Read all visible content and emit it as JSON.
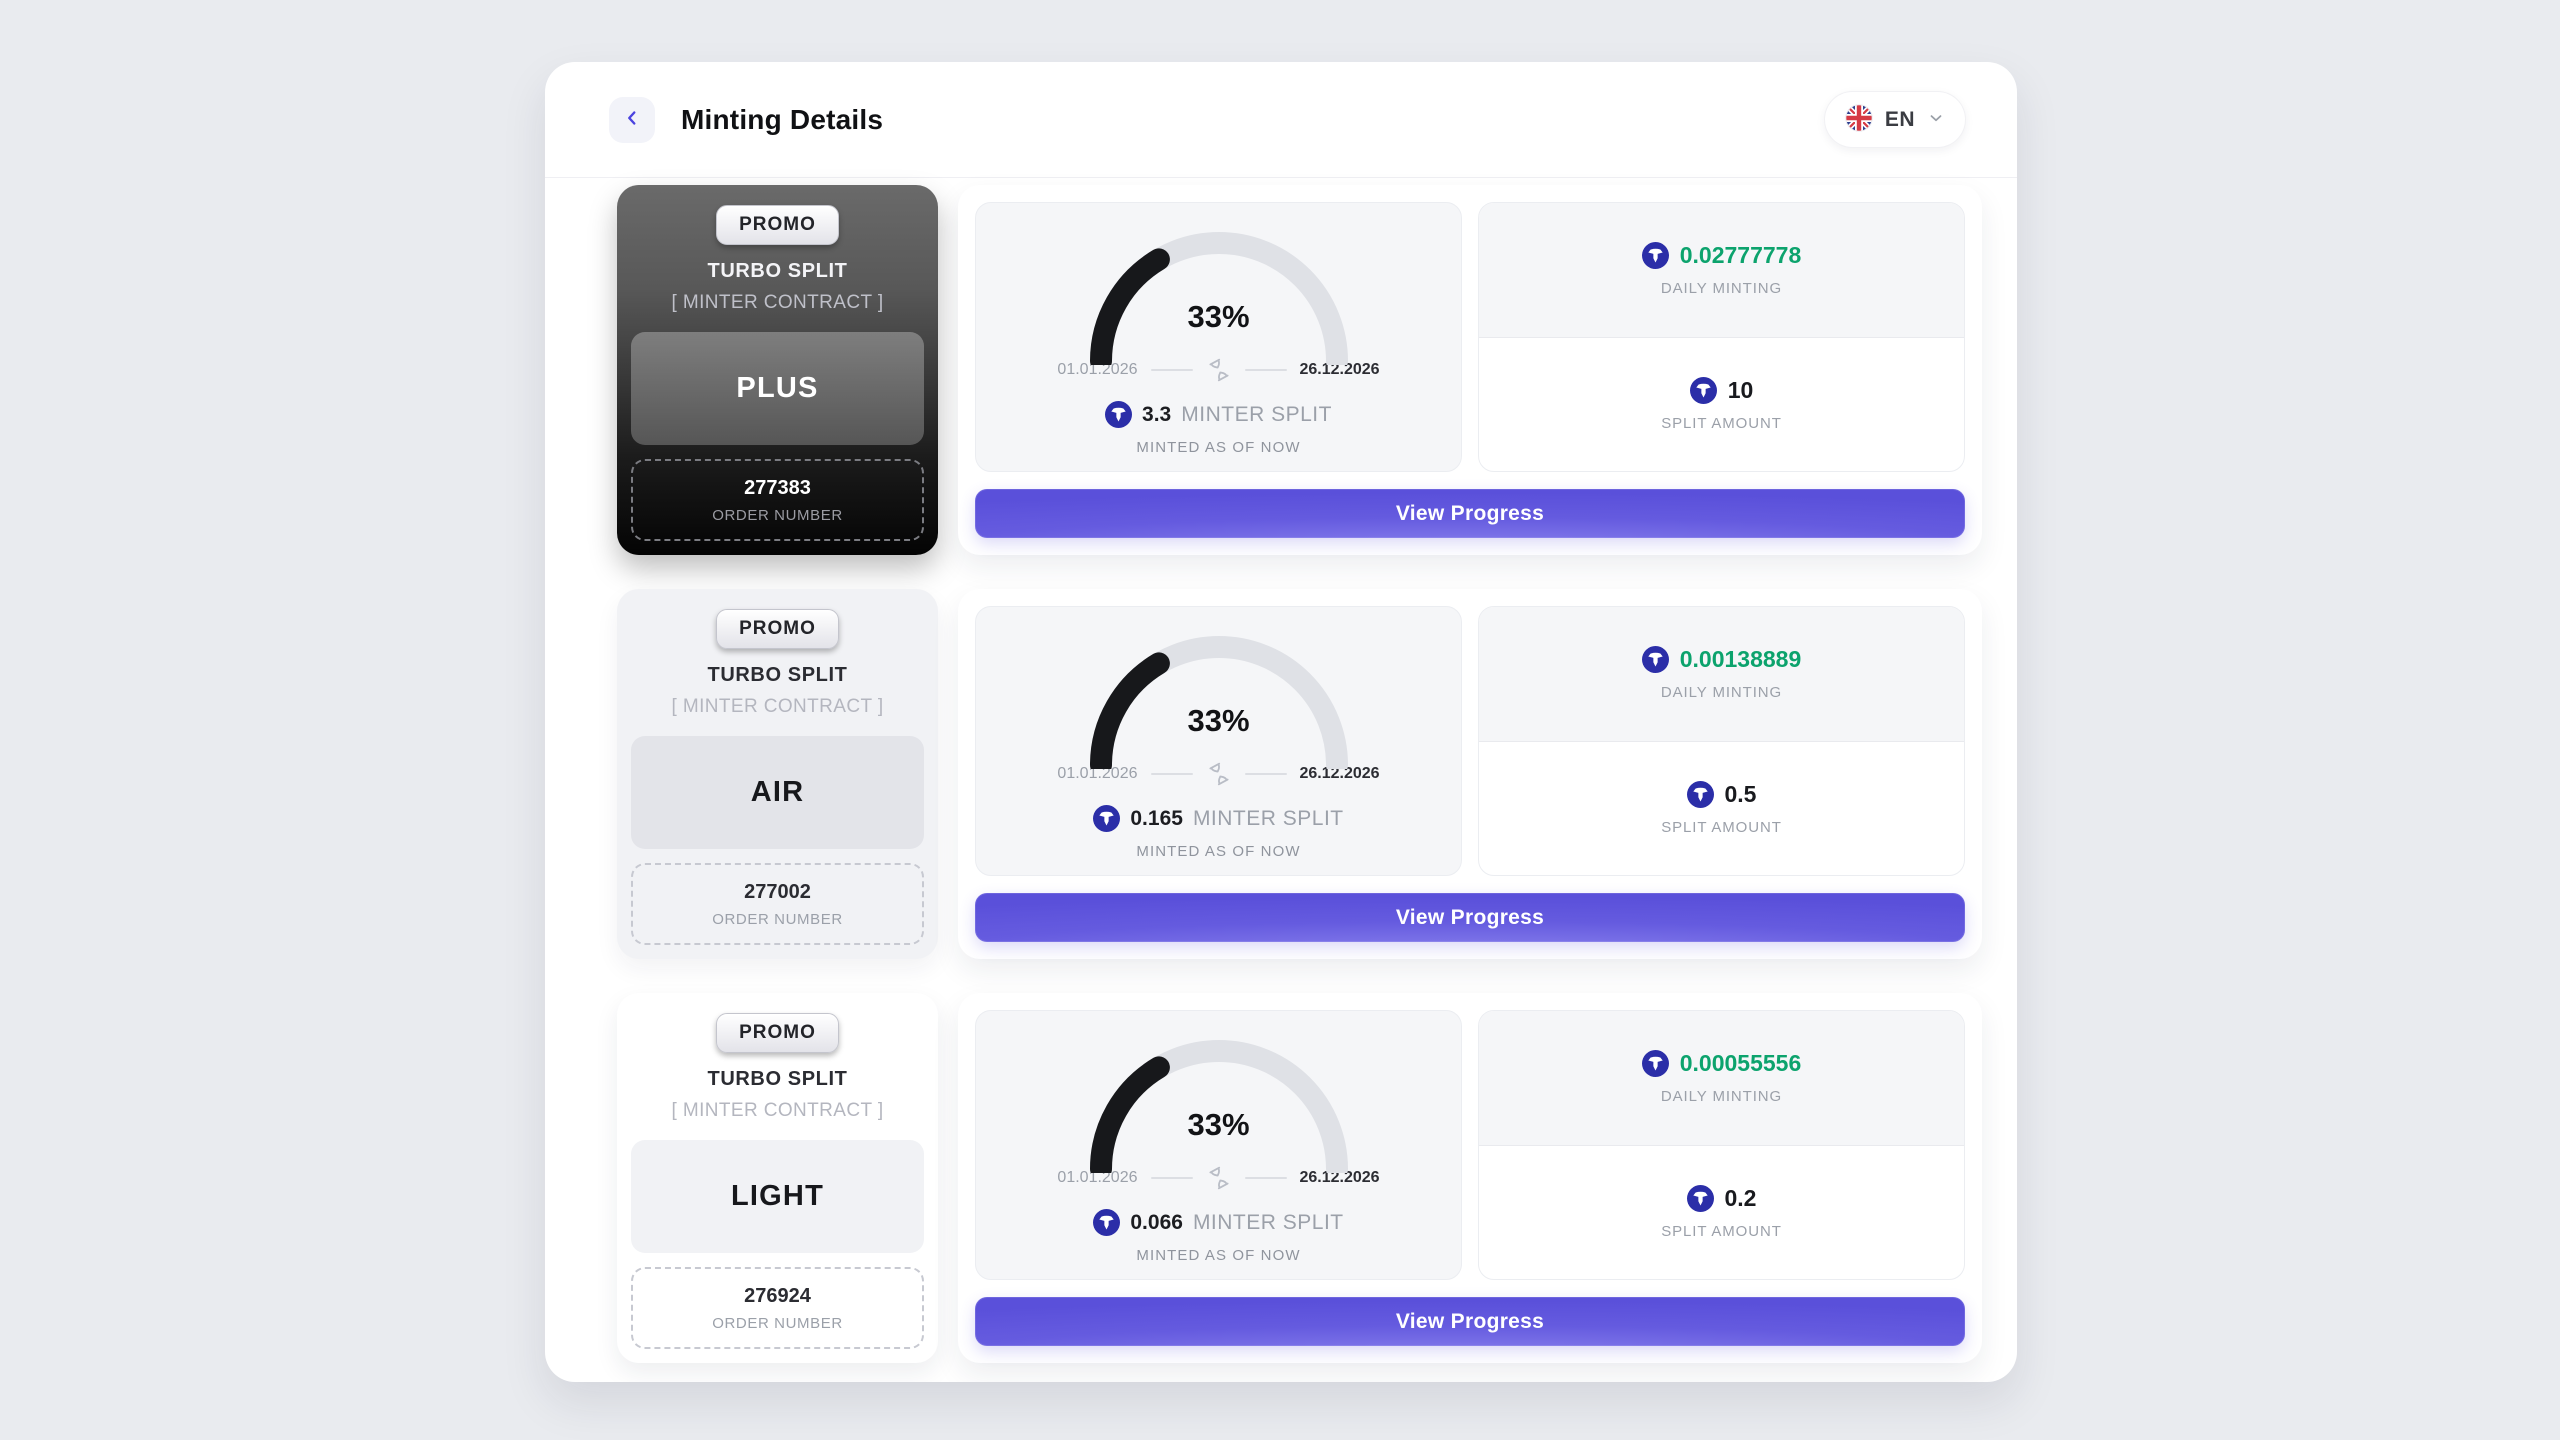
{
  "header": {
    "title": "Minting Details",
    "language": {
      "code": "EN"
    }
  },
  "colors": {
    "accent_button": "#5a50da",
    "daily_minting_green": "#0ca36d",
    "token_icon_blue": "#2b2ea8",
    "gauge_fill": "#17181b",
    "gauge_track": "#dfe1e6"
  },
  "rows": [
    {
      "promo_label": "PROMO",
      "product": "TURBO SPLIT",
      "contract": "[ MINTER CONTRACT ]",
      "tier": "PLUS",
      "order_number": "277383",
      "order_label": "ORDER NUMBER",
      "progress_percent": "33%",
      "progress_value": 33,
      "start_date": "01.01.2026",
      "end_date": "26.12.2026",
      "minter_split_value": "3.3",
      "minter_split_label": "MINTER SPLIT",
      "minted_note": "MINTED AS OF NOW",
      "daily_minting_value": "0.02777778",
      "daily_minting_label": "DAILY MINTING",
      "split_amount_value": "10",
      "split_amount_label": "SPLIT AMOUNT",
      "button_label": "View Progress"
    },
    {
      "promo_label": "PROMO",
      "product": "TURBO SPLIT",
      "contract": "[ MINTER CONTRACT ]",
      "tier": "AIR",
      "order_number": "277002",
      "order_label": "ORDER NUMBER",
      "progress_percent": "33%",
      "progress_value": 33,
      "start_date": "01.01.2026",
      "end_date": "26.12.2026",
      "minter_split_value": "0.165",
      "minter_split_label": "MINTER SPLIT",
      "minted_note": "MINTED AS OF NOW",
      "daily_minting_value": "0.00138889",
      "daily_minting_label": "DAILY MINTING",
      "split_amount_value": "0.5",
      "split_amount_label": "SPLIT AMOUNT",
      "button_label": "View Progress"
    },
    {
      "promo_label": "PROMO",
      "product": "TURBO SPLIT",
      "contract": "[ MINTER CONTRACT ]",
      "tier": "LIGHT",
      "order_number": "276924",
      "order_label": "ORDER NUMBER",
      "progress_percent": "33%",
      "progress_value": 33,
      "start_date": "01.01.2026",
      "end_date": "26.12.2026",
      "minter_split_value": "0.066",
      "minter_split_label": "MINTER SPLIT",
      "minted_note": "MINTED AS OF NOW",
      "daily_minting_value": "0.00055556",
      "daily_minting_label": "DAILY MINTING",
      "split_amount_value": "0.2",
      "split_amount_label": "SPLIT AMOUNT",
      "button_label": "View Progress"
    }
  ]
}
